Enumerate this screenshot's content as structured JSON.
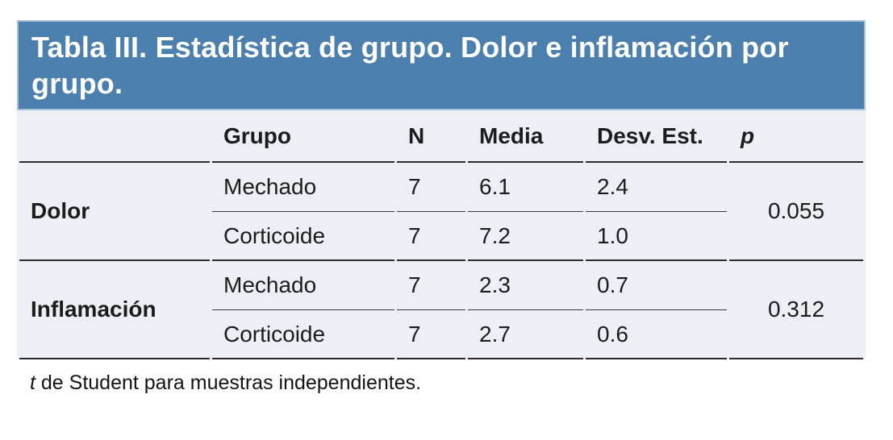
{
  "title": "Tabla III. Estadística de grupo. Dolor e inflamación por grupo.",
  "columns": {
    "label": "",
    "grupo": "Grupo",
    "n": "N",
    "media": "Media",
    "desv": "Desv. Est.",
    "p": "p"
  },
  "groups": [
    {
      "label": "Dolor",
      "p": "0.055",
      "rows": [
        {
          "grupo": "Mechado",
          "n": "7",
          "media": "6.1",
          "desv": "2.4"
        },
        {
          "grupo": "Corticoide",
          "n": "7",
          "media": "7.2",
          "desv": "1.0"
        }
      ]
    },
    {
      "label": "Inflamación",
      "p": "0.312",
      "rows": [
        {
          "grupo": "Mechado",
          "n": "7",
          "media": "2.3",
          "desv": "0.7"
        },
        {
          "grupo": "Corticoide",
          "n": "7",
          "media": "2.7",
          "desv": "0.6"
        }
      ]
    }
  ],
  "footnote": {
    "symbol": "t",
    "text": " de Student para muestras independientes."
  },
  "colors": {
    "title_bg": "#4b7fad",
    "title_border": "#a9c2da",
    "title_text": "#ffffff",
    "body_bg": "#edeff5",
    "rule_strong": "#2c2c2c",
    "rule_light": "#3a3a3a",
    "text": "#1c1c1e"
  },
  "chart_data": {
    "type": "table",
    "title": "Tabla III. Estadística de grupo. Dolor e inflamación por grupo.",
    "columns": [
      "",
      "Grupo",
      "N",
      "Media",
      "Desv. Est.",
      "p"
    ],
    "rows": [
      [
        "Dolor",
        "Mechado",
        7,
        6.1,
        2.4,
        0.055
      ],
      [
        "Dolor",
        "Corticoide",
        7,
        7.2,
        1.0,
        0.055
      ],
      [
        "Inflamación",
        "Mechado",
        7,
        2.3,
        0.7,
        0.312
      ],
      [
        "Inflamación",
        "Corticoide",
        7,
        2.7,
        0.6,
        0.312
      ]
    ],
    "footnote": "t de Student para muestras independientes."
  }
}
